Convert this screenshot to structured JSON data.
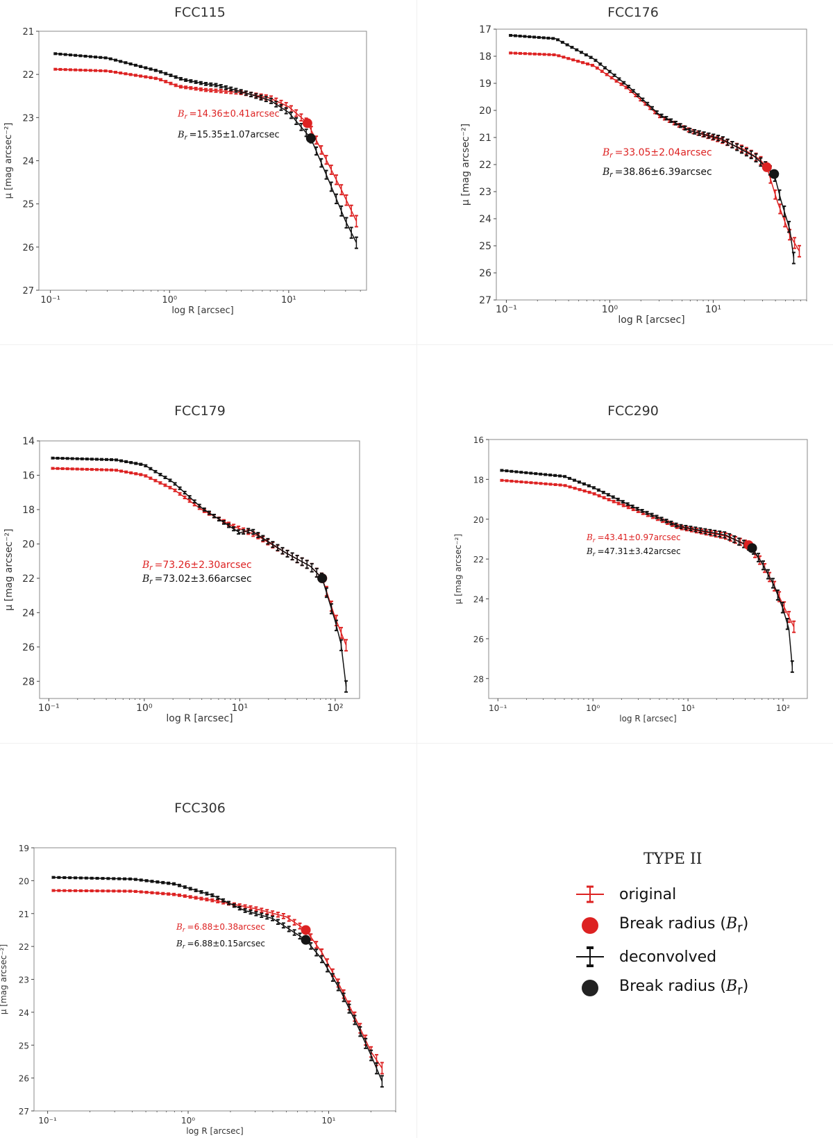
{
  "colors": {
    "original": "#dd2222",
    "deconvolved": "#111111",
    "frame": "#888888"
  },
  "legend": {
    "title": "TYPE II",
    "items": [
      {
        "label": "original",
        "icon": "red-errorbar-line-icon"
      },
      {
        "label": "Break radius (",
        "math": "B",
        "sub": "r",
        "suffix": ")",
        "icon": "red-dot-icon"
      },
      {
        "label": "deconvolved",
        "icon": "black-errorbar-line-icon"
      },
      {
        "label": "Break radius (",
        "math": "B",
        "sub": "r",
        "suffix": ")",
        "icon": "black-dot-icon"
      }
    ]
  },
  "chart_data": [
    {
      "type": "line",
      "title": "FCC115",
      "xscale": "log",
      "xlabel": "log R [arcsec]",
      "ylabel": "μ [mag arcsec⁻²]",
      "xlim": [
        0.08,
        45
      ],
      "ylim": [
        27,
        21
      ],
      "xticks": [
        "10⁻¹",
        "10⁰",
        "10¹"
      ],
      "yticks": [
        21,
        22,
        23,
        24,
        25,
        26,
        27
      ],
      "original_profile": [
        [
          0.11,
          21.88
        ],
        [
          0.3,
          21.92
        ],
        [
          0.8,
          22.1
        ],
        [
          1.2,
          22.28
        ],
        [
          2.0,
          22.36
        ],
        [
          4.0,
          22.42
        ],
        [
          7.0,
          22.55
        ],
        [
          10.0,
          22.75
        ],
        [
          14.36,
          23.12
        ],
        [
          20.0,
          23.9
        ],
        [
          28.0,
          24.7
        ],
        [
          37.0,
          25.4
        ]
      ],
      "deconvolved_profile": [
        [
          0.11,
          21.52
        ],
        [
          0.3,
          21.62
        ],
        [
          0.8,
          21.92
        ],
        [
          1.3,
          22.12
        ],
        [
          2.0,
          22.22
        ],
        [
          2.5,
          22.25
        ],
        [
          4.0,
          22.4
        ],
        [
          7.0,
          22.6
        ],
        [
          10.0,
          22.88
        ],
        [
          15.35,
          23.48
        ],
        [
          22.0,
          24.5
        ],
        [
          30.0,
          25.4
        ],
        [
          37.0,
          25.9
        ]
      ],
      "breaks": {
        "original": {
          "x": 14.36,
          "y": 23.13,
          "label": "=14.36±0.41arcsec"
        },
        "deconvolved": {
          "x": 15.35,
          "y": 23.48,
          "label": "=15.35±1.07arcsec"
        }
      }
    },
    {
      "type": "line",
      "title": "FCC176",
      "xscale": "log",
      "xlabel": "log R [arcsec]",
      "ylabel": "μ [mag arcsec⁻²]",
      "xlim": [
        0.08,
        80
      ],
      "ylim": [
        27,
        17
      ],
      "xticks": [
        "10⁻¹",
        "10⁰",
        "10¹"
      ],
      "yticks": [
        17,
        18,
        19,
        20,
        21,
        22,
        23,
        24,
        25,
        26,
        27
      ],
      "original_profile": [
        [
          0.11,
          17.88
        ],
        [
          0.3,
          17.95
        ],
        [
          0.7,
          18.35
        ],
        [
          1.5,
          19.2
        ],
        [
          3.0,
          20.2
        ],
        [
          6.0,
          20.75
        ],
        [
          12.0,
          21.1
        ],
        [
          20.0,
          21.45
        ],
        [
          28.0,
          21.8
        ],
        [
          33.05,
          22.1
        ],
        [
          42.0,
          23.4
        ],
        [
          55.0,
          24.6
        ],
        [
          68.0,
          25.2
        ]
      ],
      "deconvolved_profile": [
        [
          0.11,
          17.23
        ],
        [
          0.3,
          17.35
        ],
        [
          0.7,
          18.1
        ],
        [
          1.5,
          19.1
        ],
        [
          3.0,
          20.15
        ],
        [
          6.0,
          20.75
        ],
        [
          12.0,
          21.05
        ],
        [
          25.0,
          21.7
        ],
        [
          38.86,
          22.35
        ],
        [
          45.0,
          23.3
        ],
        [
          55.0,
          24.4
        ],
        [
          60.0,
          25.45
        ]
      ],
      "breaks": {
        "original": {
          "x": 33.05,
          "y": 22.1,
          "label": "=33.05±2.04arcsec"
        },
        "deconvolved": {
          "x": 38.86,
          "y": 22.35,
          "label": "=38.86±6.39arcsec"
        }
      }
    },
    {
      "type": "line",
      "title": "FCC179",
      "xscale": "log",
      "xlabel": "log R [arcsec]",
      "ylabel": "μ [mag arcsec⁻²]",
      "xlim": [
        0.08,
        180
      ],
      "ylim": [
        29,
        14
      ],
      "xticks": [
        "10⁻¹",
        "10⁰",
        "10¹",
        "10²"
      ],
      "yticks": [
        14,
        16,
        18,
        20,
        22,
        24,
        26,
        28
      ],
      "original_profile": [
        [
          0.11,
          15.6
        ],
        [
          0.5,
          15.7
        ],
        [
          1.0,
          16.0
        ],
        [
          2.0,
          16.8
        ],
        [
          4.0,
          18.0
        ],
        [
          8.0,
          18.9
        ],
        [
          15.0,
          19.5
        ],
        [
          30.0,
          20.5
        ],
        [
          55.0,
          21.3
        ],
        [
          73.26,
          22.0
        ],
        [
          100.0,
          24.3
        ],
        [
          130.0,
          25.9
        ]
      ],
      "deconvolved_profile": [
        [
          0.11,
          15.0
        ],
        [
          0.5,
          15.1
        ],
        [
          1.0,
          15.4
        ],
        [
          2.0,
          16.4
        ],
        [
          4.0,
          17.9
        ],
        [
          8.0,
          19.0
        ],
        [
          10.0,
          19.35
        ],
        [
          13.0,
          19.2
        ],
        [
          30.0,
          20.5
        ],
        [
          55.0,
          21.3
        ],
        [
          73.02,
          22.0
        ],
        [
          100.0,
          24.5
        ],
        [
          115.0,
          25.8
        ],
        [
          130.0,
          28.3
        ]
      ],
      "breaks": {
        "original": {
          "x": 73.26,
          "y": 22.0,
          "label": "=73.26±2.30arcsec"
        },
        "deconvolved": {
          "x": 73.02,
          "y": 22.0,
          "label": "=73.02±3.66arcsec"
        }
      }
    },
    {
      "type": "line",
      "title": "FCC290",
      "xscale": "log",
      "xlabel": "log R [arcsec]",
      "ylabel": "μ [mag arcsec⁻²]",
      "xlim": [
        0.08,
        180
      ],
      "ylim": [
        29,
        16
      ],
      "xticks": [
        "10⁻¹",
        "10⁰",
        "10¹",
        "10²"
      ],
      "yticks": [
        16,
        18,
        20,
        22,
        24,
        26,
        28
      ],
      "original_profile": [
        [
          0.11,
          18.05
        ],
        [
          0.5,
          18.3
        ],
        [
          1.0,
          18.7
        ],
        [
          3.0,
          19.6
        ],
        [
          8.0,
          20.4
        ],
        [
          15.0,
          20.65
        ],
        [
          25.0,
          20.85
        ],
        [
          43.41,
          21.3
        ],
        [
          60.0,
          22.2
        ],
        [
          80.0,
          23.3
        ],
        [
          100.0,
          24.3
        ],
        [
          130.0,
          25.4
        ]
      ],
      "deconvolved_profile": [
        [
          0.11,
          17.55
        ],
        [
          0.5,
          17.85
        ],
        [
          1.0,
          18.4
        ],
        [
          3.0,
          19.5
        ],
        [
          8.0,
          20.35
        ],
        [
          15.0,
          20.6
        ],
        [
          25.0,
          20.8
        ],
        [
          47.31,
          21.45
        ],
        [
          60.0,
          22.2
        ],
        [
          80.0,
          23.3
        ],
        [
          100.0,
          24.5
        ],
        [
          115.0,
          25.5
        ],
        [
          125.0,
          27.4
        ]
      ],
      "breaks": {
        "original": {
          "x": 43.41,
          "y": 21.3,
          "label": "=43.41±0.97arcsec"
        },
        "deconvolved": {
          "x": 47.31,
          "y": 21.45,
          "label": "=47.31±3.42arcsec"
        }
      }
    },
    {
      "type": "line",
      "title": "FCC306",
      "xscale": "log",
      "xlabel": "log R [arcsec]",
      "ylabel": "μ [mag arcsec⁻²]",
      "xlim": [
        0.08,
        30
      ],
      "ylim": [
        27,
        19
      ],
      "xticks": [
        "10⁻¹",
        "10⁰",
        "10¹"
      ],
      "yticks": [
        19,
        20,
        21,
        22,
        23,
        24,
        25,
        26,
        27
      ],
      "original_profile": [
        [
          0.11,
          20.3
        ],
        [
          0.4,
          20.32
        ],
        [
          0.8,
          20.42
        ],
        [
          1.5,
          20.6
        ],
        [
          3.0,
          20.85
        ],
        [
          5.0,
          21.1
        ],
        [
          6.88,
          21.5
        ],
        [
          9.0,
          22.2
        ],
        [
          12.0,
          23.2
        ],
        [
          16.0,
          24.3
        ],
        [
          20.0,
          25.2
        ],
        [
          24.0,
          25.7
        ]
      ],
      "deconvolved_profile": [
        [
          0.11,
          19.9
        ],
        [
          0.4,
          19.95
        ],
        [
          0.8,
          20.1
        ],
        [
          1.5,
          20.45
        ],
        [
          2.5,
          20.9
        ],
        [
          4.0,
          21.15
        ],
        [
          6.88,
          21.8
        ],
        [
          9.0,
          22.4
        ],
        [
          12.0,
          23.3
        ],
        [
          16.0,
          24.4
        ],
        [
          20.0,
          25.3
        ],
        [
          24.0,
          26.1
        ]
      ],
      "breaks": {
        "original": {
          "x": 6.88,
          "y": 21.5,
          "label": "=6.88±0.38arcsec"
        },
        "deconvolved": {
          "x": 6.88,
          "y": 21.8,
          "label": "=6.88±0.15arcsec"
        }
      }
    }
  ]
}
